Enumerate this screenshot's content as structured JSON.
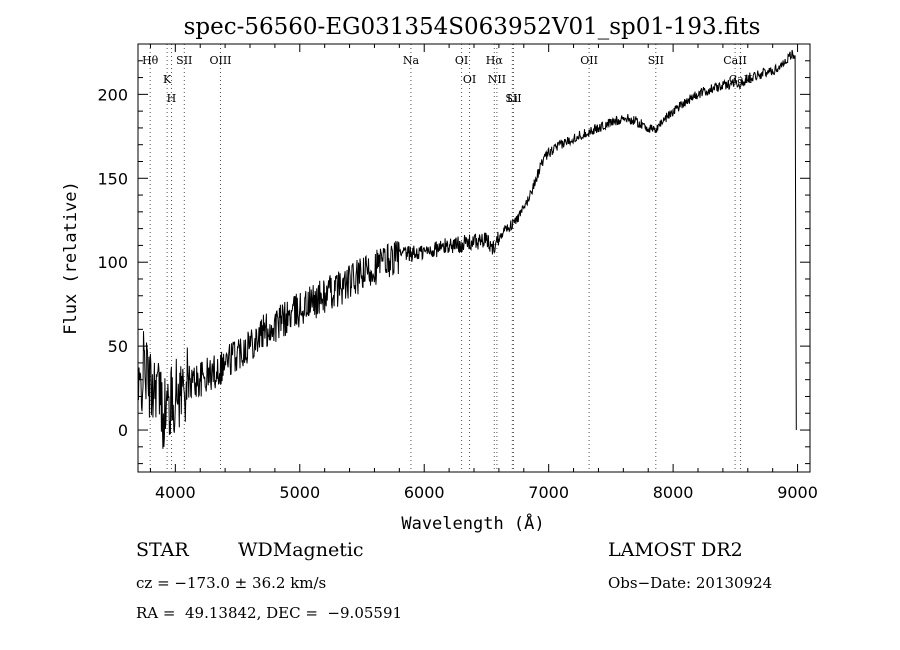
{
  "chart_data": {
    "type": "line",
    "title": "spec-56560-EG031354S063952V01_sp01-193.fits",
    "xlabel": "Wavelength (Å)",
    "ylabel": "Flux (relative)",
    "xlim": [
      3700,
      9100
    ],
    "ylim": [
      -25,
      230
    ],
    "xticks": [
      4000,
      5000,
      6000,
      7000,
      8000,
      9000
    ],
    "yticks": [
      0,
      50,
      100,
      150,
      200
    ],
    "grid": false,
    "legend": "none",
    "line_color": "#000000",
    "series": [
      {
        "x": [
          3700,
          3750,
          3800,
          3850,
          3900,
          3950,
          4000,
          4100,
          4200,
          4300,
          4400,
          4500,
          4600,
          4700,
          4800,
          4900,
          5000,
          5100,
          5200,
          5300,
          5400,
          5500,
          5600,
          5700,
          5800,
          5900,
          6000,
          6100,
          6200,
          6300,
          6400,
          6500,
          6550,
          6600,
          6650,
          6700,
          6750,
          6800,
          6850,
          6900,
          6950,
          7000,
          7100,
          7200,
          7300,
          7400,
          7500,
          7600,
          7700,
          7800,
          7850,
          7900,
          8000,
          8100,
          8200,
          8300,
          8400,
          8450,
          8500,
          8550,
          8600,
          8700,
          8800,
          8850,
          8900,
          8950,
          8980
        ],
        "values": [
          15,
          40,
          25,
          30,
          10,
          15,
          20,
          28,
          30,
          34,
          40,
          46,
          52,
          58,
          62,
          67,
          72,
          76,
          80,
          84,
          88,
          92,
          97,
          101,
          104,
          105,
          106,
          108,
          110,
          111,
          112,
          113,
          108,
          115,
          120,
          122,
          126,
          132,
          140,
          150,
          160,
          165,
          170,
          174,
          177,
          180,
          183,
          186,
          184,
          180,
          178,
          183,
          190,
          196,
          200,
          203,
          205,
          206,
          208,
          205,
          210,
          212,
          214,
          216,
          220,
          224,
          222
        ]
      }
    ],
    "line_marks": [
      {
        "label": "Hθ",
        "x": 3798
      },
      {
        "label": "K",
        "x": 3934
      },
      {
        "label": "H",
        "x": 3969
      },
      {
        "label": "SII",
        "x": 4072
      },
      {
        "label": "OIII",
        "x": 4363
      },
      {
        "label": "Na",
        "x": 5893
      },
      {
        "label": "OI",
        "x": 6300
      },
      {
        "label": "OI",
        "x": 6364
      },
      {
        "label": "Hα",
        "x": 6563
      },
      {
        "label": "NII",
        "x": 6584
      },
      {
        "label": "Li",
        "x": 6708
      },
      {
        "label": "SII",
        "x": 6717
      },
      {
        "label": "OII",
        "x": 7325
      },
      {
        "label": "SII",
        "x": 7861
      },
      {
        "label": "CaII",
        "x": 8498
      },
      {
        "label": "CaII",
        "x": 8542
      }
    ]
  },
  "info": {
    "class": "STAR",
    "subclass": "WDMagnetic",
    "survey": "LAMOST DR2",
    "cz": "cz = −173.0 ± 36.2 km/s",
    "obsdate": "Obs−Date: 20130924",
    "radec": "RA =  49.13842, DEC =  −9.05591"
  }
}
